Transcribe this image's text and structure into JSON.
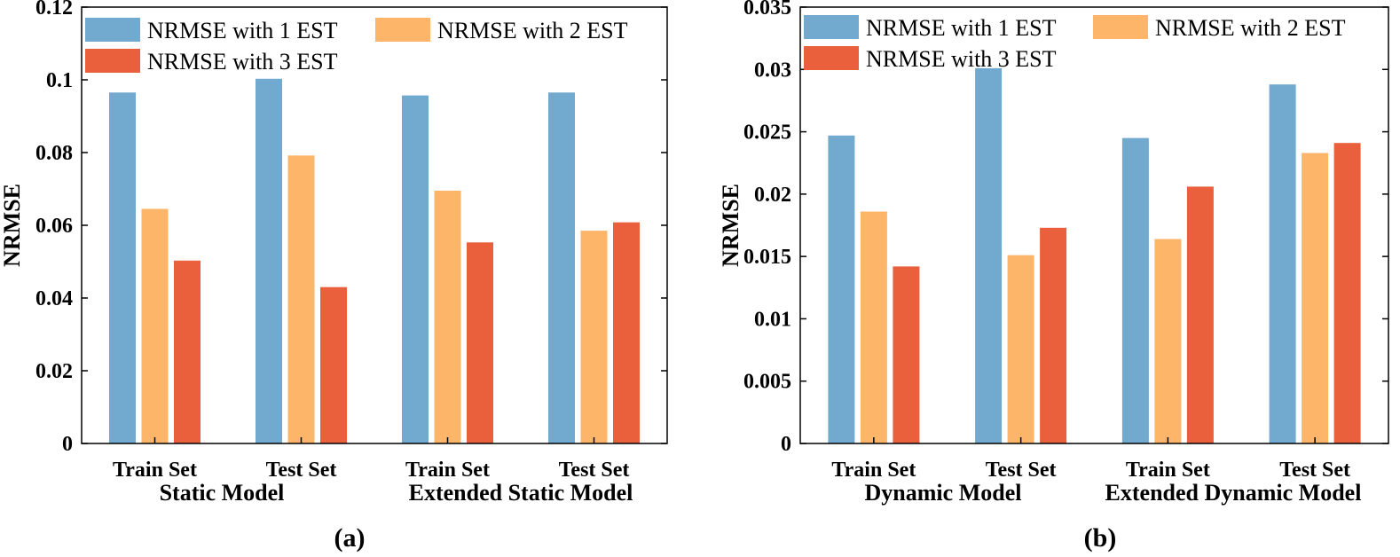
{
  "colors": {
    "est1": "#72A9CF",
    "est2": "#FDB56A",
    "est3": "#EA5F3C"
  },
  "chart_data": [
    {
      "type": "bar",
      "panel_label": "(a)",
      "ylabel": "NRMSE",
      "ylim": [
        0,
        0.12
      ],
      "yticks": [
        "0",
        "0.02",
        "0.04",
        "0.06",
        "0.08",
        "0.1",
        "0.12"
      ],
      "ytick_values": [
        0,
        0.02,
        0.04,
        0.06,
        0.08,
        0.1,
        0.12
      ],
      "categories": [
        "Train Set",
        "Test Set",
        "Train Set",
        "Test Set"
      ],
      "groups": [
        "Static Model",
        "Extended Static Model"
      ],
      "legend_position": "top-left",
      "series": [
        {
          "name": "NRMSE with 1 EST",
          "values": [
            0.0965,
            0.1003,
            0.0957,
            0.0965
          ]
        },
        {
          "name": "NRMSE with 2 EST",
          "values": [
            0.0645,
            0.0792,
            0.0695,
            0.0585
          ]
        },
        {
          "name": "NRMSE with 3 EST",
          "values": [
            0.0503,
            0.043,
            0.0553,
            0.0608
          ]
        }
      ]
    },
    {
      "type": "bar",
      "panel_label": "(b)",
      "ylabel": "NRMSE",
      "ylim": [
        0,
        0.035
      ],
      "yticks": [
        "0",
        "0.005",
        "0.01",
        "0.015",
        "0.02",
        "0.025",
        "0.03",
        "0.035"
      ],
      "ytick_values": [
        0,
        0.005,
        0.01,
        0.015,
        0.02,
        0.025,
        0.03,
        0.035
      ],
      "categories": [
        "Train Set",
        "Test Set",
        "Train Set",
        "Test Set"
      ],
      "groups": [
        "Dynamic Model",
        "Extended Dynamic Model"
      ],
      "legend_position": "top-left",
      "series": [
        {
          "name": "NRMSE with 1 EST",
          "values": [
            0.0247,
            0.0301,
            0.0245,
            0.0288
          ]
        },
        {
          "name": "NRMSE with 2 EST",
          "values": [
            0.0186,
            0.0151,
            0.0164,
            0.0233
          ]
        },
        {
          "name": "NRMSE with 3 EST",
          "values": [
            0.0142,
            0.0173,
            0.0206,
            0.0241
          ]
        }
      ]
    }
  ]
}
